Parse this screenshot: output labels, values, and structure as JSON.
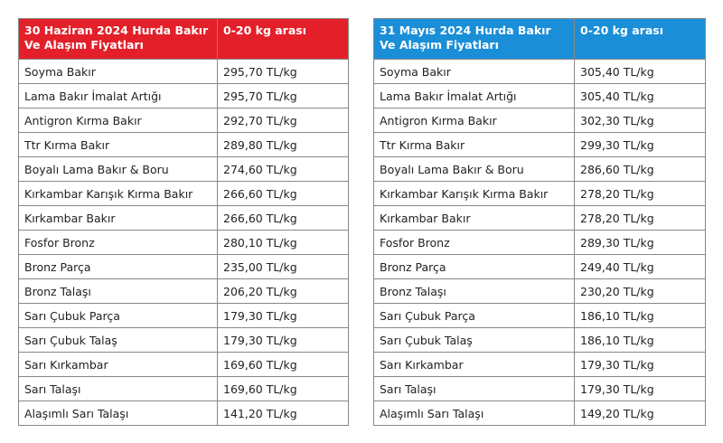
{
  "tables": [
    {
      "header": [
        "30 Haziran 2024 Hurda Bakır Ve Alaşım Fiyatları",
        "0-20 kg arası"
      ],
      "rows": [
        [
          "Soyma Bakır",
          "295,70 TL/kg"
        ],
        [
          "Lama Bakır İmalat Artığı",
          "295,70 TL/kg"
        ],
        [
          "Antigron Kırma Bakır",
          "292,70 TL/kg"
        ],
        [
          "Ttr Kırma Bakır",
          "289,80 TL/kg"
        ],
        [
          "Boyalı Lama Bakır & Boru",
          "274,60 TL/kg"
        ],
        [
          "Kırkambar Karışık Kırma Bakır",
          "266,60 TL/kg"
        ],
        [
          "Kırkambar Bakır",
          "266,60 TL/kg"
        ],
        [
          "Fosfor Bronz",
          "280,10 TL/kg"
        ],
        [
          "Bronz Parça",
          "235,00 TL/kg"
        ],
        [
          "Bronz Talaşı",
          "206,20 TL/kg"
        ],
        [
          "Sarı Çubuk Parça",
          "179,30 TL/kg"
        ],
        [
          "Sarı Çubuk Talaş",
          "179,30 TL/kg"
        ],
        [
          "Sarı Kırkambar",
          "169,60 TL/kg"
        ],
        [
          "Sarı Talaşı",
          "169,60 TL/kg"
        ],
        [
          "Alaşımlı Sarı Talaşı",
          "141,20 TL/kg"
        ]
      ]
    },
    {
      "header": [
        "31 Mayıs 2024 Hurda Bakır Ve Alaşım Fiyatları",
        "0-20 kg arası"
      ],
      "rows": [
        [
          "Soyma Bakır",
          "305,40 TL/kg"
        ],
        [
          "Lama Bakır İmalat Artığı",
          "305,40 TL/kg"
        ],
        [
          "Antigron Kırma Bakır",
          "302,30 TL/kg"
        ],
        [
          "Ttr Kırma Bakır",
          "299,30 TL/kg"
        ],
        [
          "Boyalı Lama Bakır & Boru",
          "286,60 TL/kg"
        ],
        [
          "Kırkambar Karışık Kırma Bakır",
          "278,20 TL/kg"
        ],
        [
          "Kırkambar Bakır",
          "278,20 TL/kg"
        ],
        [
          "Fosfor Bronz",
          "289,30 TL/kg"
        ],
        [
          "Bronz Parça",
          "249,40 TL/kg"
        ],
        [
          "Bronz Talaşı",
          "230,20 TL/kg"
        ],
        [
          "Sarı Çubuk Parça",
          "186,10 TL/kg"
        ],
        [
          "Sarı Çubuk Talaş",
          "186,10 TL/kg"
        ],
        [
          "Sarı Kırkambar",
          "179,30 TL/kg"
        ],
        [
          "Sarı Talaşı",
          "179,30 TL/kg"
        ],
        [
          "Alaşımlı Sarı Talaşı",
          "149,20 TL/kg"
        ]
      ]
    }
  ]
}
